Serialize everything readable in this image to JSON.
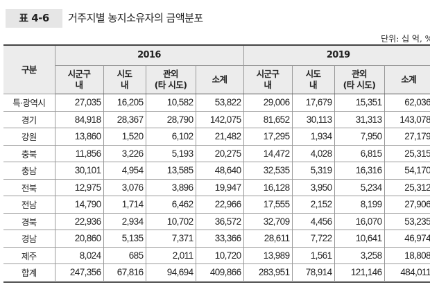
{
  "title": {
    "label": "표 4-6",
    "text": "거주지별 농지소유자의 금액분포"
  },
  "unit": "단위: 십 억, %",
  "table": {
    "row_header": "구분",
    "years": [
      "2016",
      "2019"
    ],
    "subheaders": [
      [
        "시군구",
        "내"
      ],
      [
        "시도",
        "내"
      ],
      [
        "관외",
        "(타 시도)"
      ],
      [
        "소계",
        ""
      ]
    ],
    "rows": [
      {
        "region": "특·광역시",
        "values": [
          "27,035",
          "16,205",
          "10,582",
          "53,822",
          "29,006",
          "17,679",
          "15,351",
          "62,036"
        ]
      },
      {
        "region": "경기",
        "values": [
          "84,918",
          "28,367",
          "28,790",
          "142,075",
          "81,652",
          "30,113",
          "31,313",
          "143,078"
        ]
      },
      {
        "region": "강원",
        "values": [
          "13,860",
          "1,520",
          "6,102",
          "21,482",
          "17,295",
          "1,934",
          "7,950",
          "27,179"
        ]
      },
      {
        "region": "충북",
        "values": [
          "11,856",
          "3,226",
          "5,193",
          "20,275",
          "14,472",
          "4,028",
          "6,815",
          "25,315"
        ]
      },
      {
        "region": "충남",
        "values": [
          "30,101",
          "4,954",
          "13,585",
          "48,640",
          "32,535",
          "5,319",
          "16,316",
          "54,170"
        ]
      },
      {
        "region": "전북",
        "values": [
          "12,975",
          "3,076",
          "3,896",
          "19,947",
          "16,128",
          "3,950",
          "5,234",
          "25,312"
        ]
      },
      {
        "region": "전남",
        "values": [
          "14,790",
          "1,714",
          "6,462",
          "22,966",
          "17,555",
          "2,152",
          "8,199",
          "27,906"
        ]
      },
      {
        "region": "경북",
        "values": [
          "22,936",
          "2,934",
          "10,702",
          "36,572",
          "32,709",
          "4,456",
          "16,070",
          "53,235"
        ]
      },
      {
        "region": "경남",
        "values": [
          "20,860",
          "5,135",
          "7,371",
          "33,366",
          "28,611",
          "7,722",
          "10,641",
          "46,974"
        ]
      },
      {
        "region": "제주",
        "values": [
          "8,024",
          "685",
          "2,011",
          "10,720",
          "13,989",
          "1,561",
          "3,258",
          "18,808"
        ]
      },
      {
        "region": "합계",
        "values": [
          "247,356",
          "67,816",
          "94,694",
          "409,866",
          "283,951",
          "78,914",
          "121,146",
          "484,011"
        ]
      }
    ]
  }
}
